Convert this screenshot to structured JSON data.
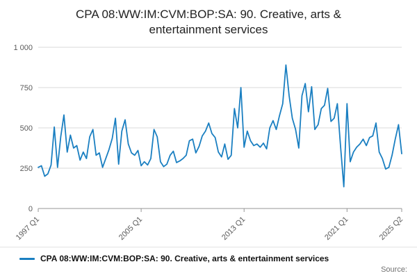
{
  "title": "CPA 08:WW:IM:CVM:BOP:SA: 90. Creative, arts & entertainment services",
  "legend": {
    "label": "CPA 08:WW:IM:CVM:BOP:SA: 90. Creative, arts & entertainment services"
  },
  "source_label": "Source:",
  "colors": {
    "line": "#1a7fc1",
    "grid": "#d9d9d9",
    "axis": "#969696",
    "tick_text": "#5a5a5a",
    "title_text": "#222222"
  },
  "chart_data": {
    "type": "line",
    "title": "CPA 08:WW:IM:CVM:BOP:SA: 90. Creative, arts & entertainment services",
    "xlabel": "",
    "ylabel": "",
    "period_start": "1997 Q1",
    "period_end": "2025 Q2",
    "frequency": "quarterly",
    "ylim": [
      0,
      1000
    ],
    "y_ticks": [
      0,
      250,
      500,
      750,
      1000
    ],
    "y_tick_labels": [
      "0",
      "250",
      "500",
      "750",
      "1 000"
    ],
    "x_tick_labels": [
      "1997 Q1",
      "2005 Q1",
      "2013 Q1",
      "2021 Q1",
      "2025 Q2"
    ],
    "x_tick_indices": [
      0,
      32,
      64,
      96,
      113
    ],
    "grid": true,
    "legend_position": "bottom-left",
    "series_name": "CPA 08:WW:IM:CVM:BOP:SA: 90. Creative, arts & entertainment services",
    "values": [
      255,
      265,
      200,
      215,
      270,
      505,
      255,
      445,
      580,
      350,
      455,
      375,
      390,
      300,
      350,
      310,
      445,
      490,
      330,
      345,
      255,
      310,
      365,
      435,
      560,
      275,
      480,
      550,
      400,
      345,
      330,
      360,
      265,
      290,
      270,
      310,
      490,
      445,
      290,
      260,
      275,
      330,
      355,
      285,
      295,
      310,
      330,
      420,
      430,
      345,
      385,
      450,
      480,
      530,
      465,
      440,
      350,
      320,
      400,
      305,
      330,
      620,
      500,
      750,
      380,
      480,
      420,
      390,
      400,
      380,
      405,
      370,
      500,
      545,
      490,
      575,
      650,
      890,
      700,
      560,
      490,
      375,
      700,
      775,
      600,
      755,
      490,
      520,
      620,
      640,
      745,
      540,
      560,
      650,
      380,
      135,
      650,
      290,
      350,
      380,
      400,
      430,
      390,
      440,
      450,
      530,
      350,
      310,
      245,
      255,
      330,
      430,
      520,
      340
    ]
  }
}
